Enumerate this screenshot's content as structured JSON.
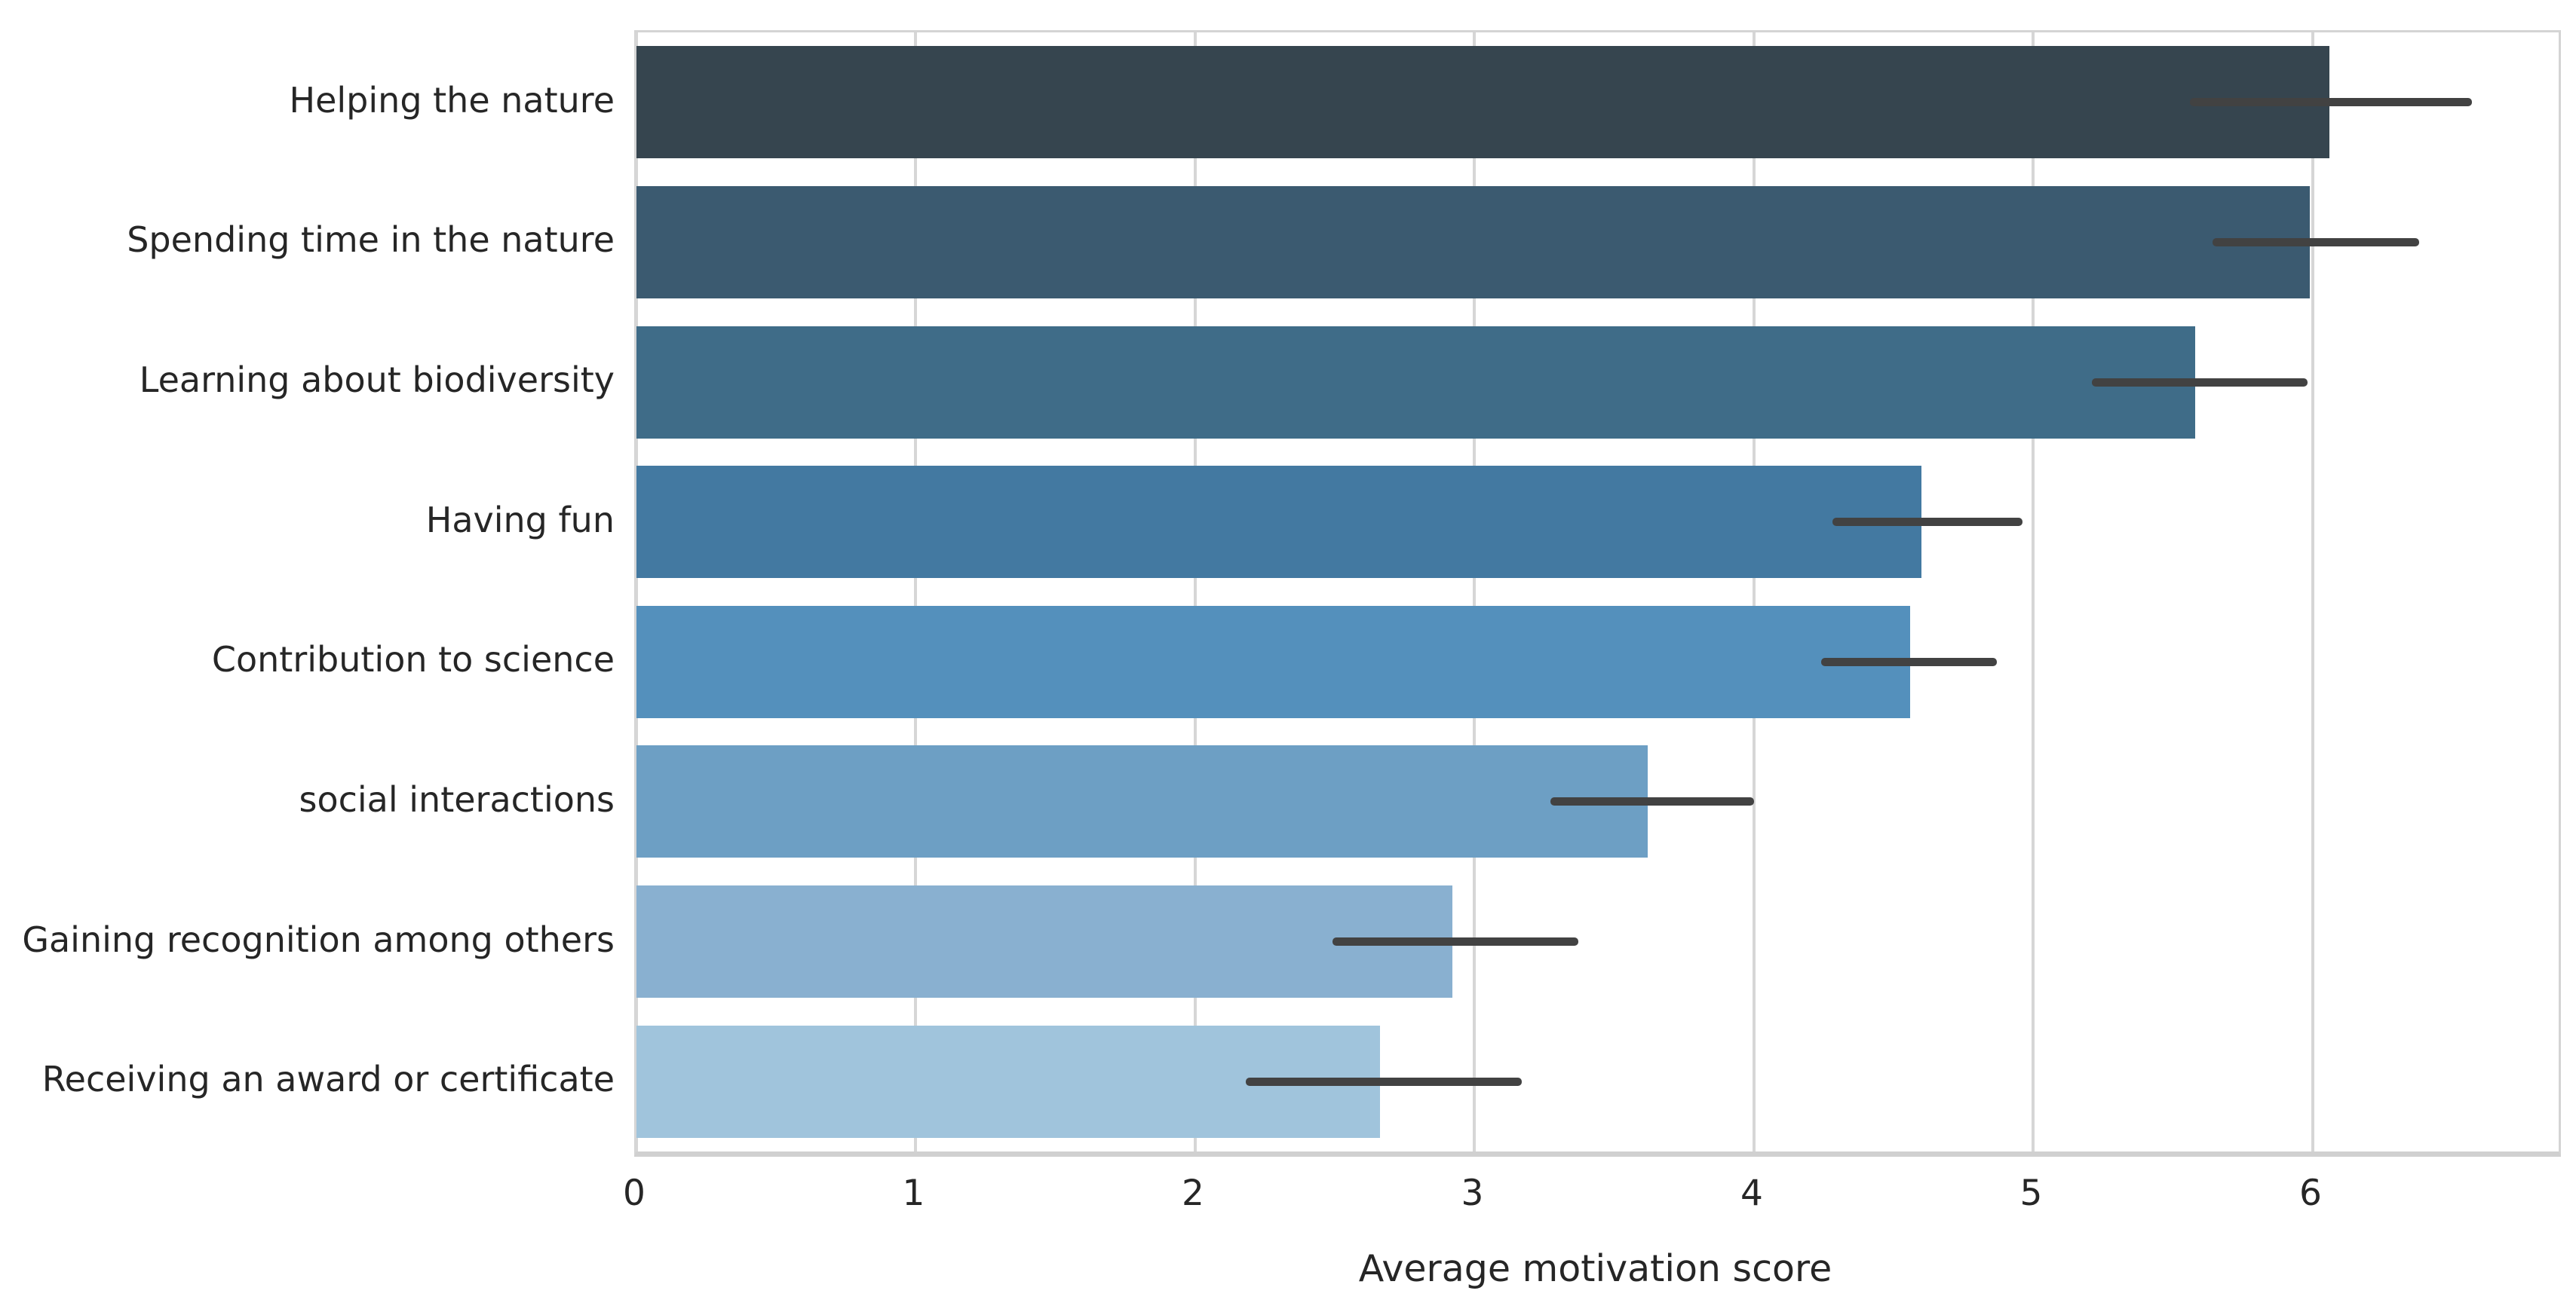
{
  "chart_data": {
    "type": "bar",
    "orientation": "horizontal",
    "title": "",
    "xlabel": "Average motivation score",
    "ylabel": "",
    "xlim": [
      0,
      6.88
    ],
    "x_ticks": [
      "0",
      "1",
      "2",
      "3",
      "4",
      "5",
      "6"
    ],
    "grid": "vertical-light-gray",
    "legend_position": "none",
    "categories": [
      "Helping the nature",
      "Spending time in the nature",
      "Learning about biodiversity",
      "Having fun",
      "Contribution to science",
      "social interactions",
      "Gaining recognition among others",
      "Receiving an award or certificate"
    ],
    "series": [
      {
        "name": "Average motivation score",
        "values": [
          6.06,
          5.99,
          5.58,
          4.6,
          4.56,
          3.62,
          2.92,
          2.66
        ],
        "error_low": [
          5.56,
          5.64,
          5.21,
          4.28,
          4.24,
          3.27,
          2.49,
          2.18
        ],
        "error_high": [
          6.57,
          6.38,
          5.98,
          4.96,
          4.87,
          4.0,
          3.37,
          3.17
        ]
      }
    ],
    "bar_colors": [
      "#36454f",
      "#3b5a70",
      "#3f6c88",
      "#4379a1",
      "#5490bc",
      "#6d9fc4",
      "#89b0d0",
      "#a0c4dc"
    ],
    "error_bar_color": "#424242"
  },
  "style_colors": {
    "background": "#ffffff",
    "grid": "#d6d6d6",
    "frame": "#d4d4d4",
    "text": "#262626"
  }
}
